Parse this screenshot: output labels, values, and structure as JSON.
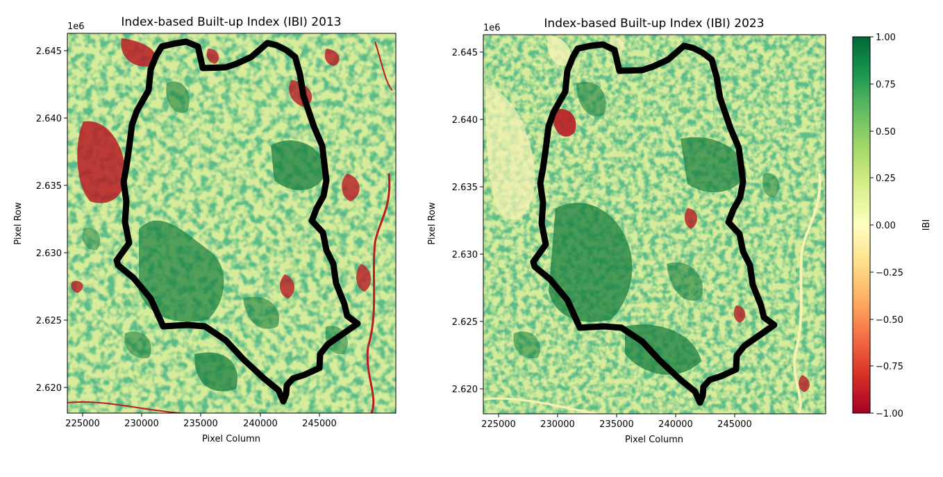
{
  "panels": [
    {
      "title": "Index-based Built-up Index (IBI) 2013",
      "offset_text": "1e6",
      "xlabel": "Pixel Column",
      "ylabel": "Pixel Row",
      "xticks": [
        "225000",
        "230000",
        "235000",
        "240000",
        "245000"
      ],
      "yticks": [
        "2.645",
        "2.640",
        "2.635",
        "2.630",
        "2.625",
        "2.620"
      ]
    },
    {
      "title": "Index-based Built-up Index (IBI) 2023",
      "offset_text": "1e6",
      "xlabel": "Pixel Column",
      "ylabel": "Pixel Row",
      "xticks": [
        "225000",
        "230000",
        "235000",
        "240000",
        "245000"
      ],
      "yticks": [
        "2.645",
        "2.640",
        "2.635",
        "2.630",
        "2.625",
        "2.620"
      ]
    }
  ],
  "colorbar": {
    "label": "IBI",
    "ticks": [
      "1.00",
      "0.75",
      "0.50",
      "0.25",
      "0.00",
      "−0.25",
      "−0.50",
      "−0.75",
      "−1.00"
    ],
    "colormap": [
      "#a50026",
      "#d73027",
      "#f46d43",
      "#fdae61",
      "#fee08b",
      "#ffffbf",
      "#d9ef8b",
      "#a6d96a",
      "#66bd63",
      "#1a9850",
      "#006837"
    ]
  },
  "map_colors": {
    "background": "#d7ec9a",
    "boundary": "#000000",
    "dense_green": "#1a7f3f",
    "mid_green": "#4daa4e",
    "red": "#b81c24",
    "light": "#f6f2b4"
  }
}
